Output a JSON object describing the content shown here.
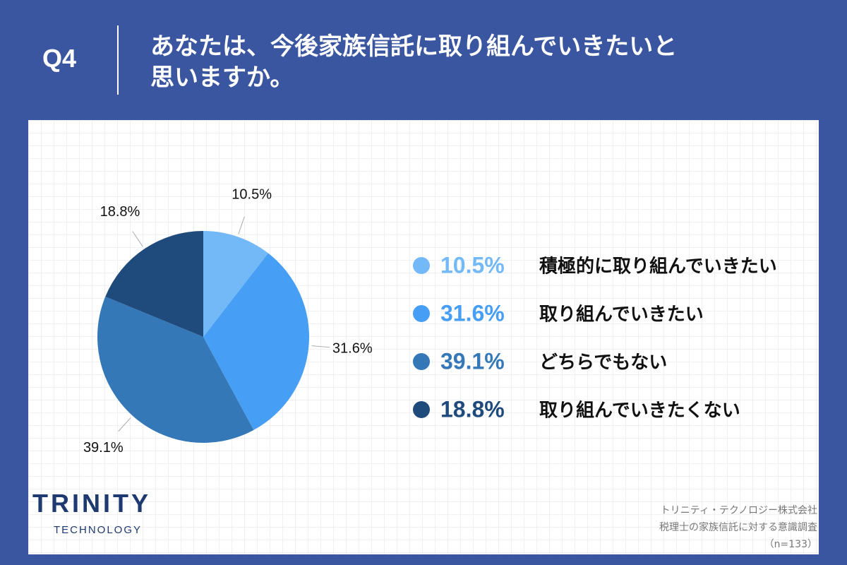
{
  "question_number": "Q4",
  "chart_data": {
    "type": "pie",
    "title": "あなたは、今後家族信託に取り組んでいきたいと思いますか。",
    "categories": [
      "積極的に取り組んでいきたい",
      "取り組んでいきたい",
      "どちらでもない",
      "取り組んでいきたくない"
    ],
    "values": [
      10.5,
      31.6,
      39.1,
      18.8
    ],
    "value_labels": [
      "10.5%",
      "31.6%",
      "39.1%",
      "18.8%"
    ],
    "colors": [
      "#74b9f7",
      "#469ef5",
      "#3478b8",
      "#1f4a7c"
    ]
  },
  "logo": {
    "name": "TRINITY",
    "sub": "TECHNOLOGY"
  },
  "footer": [
    "トリニティ・テクノロジー株式会社",
    "税理士の家族信託に対する意識調査",
    "（n=133）"
  ]
}
